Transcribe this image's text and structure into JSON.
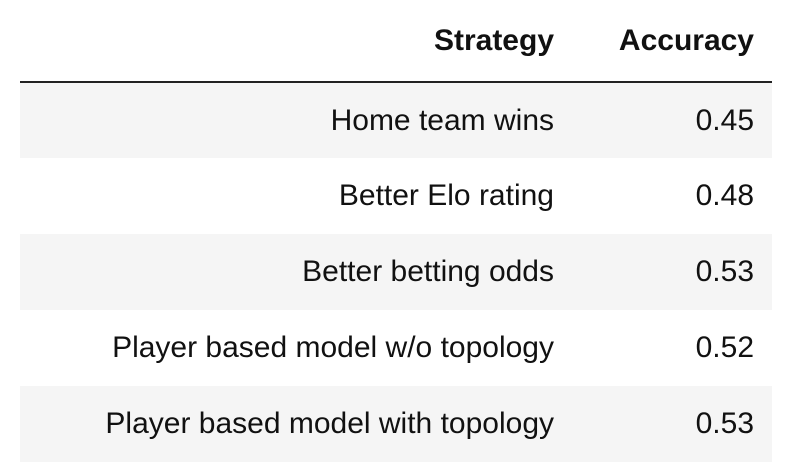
{
  "chart_data": {
    "type": "table",
    "columns": [
      "Strategy",
      "Accuracy"
    ],
    "rows": [
      {
        "strategy": "Home team wins",
        "accuracy": "0.45"
      },
      {
        "strategy": "Better Elo rating",
        "accuracy": "0.48"
      },
      {
        "strategy": "Better betting odds",
        "accuracy": "0.53"
      },
      {
        "strategy": "Player based model w/o topology",
        "accuracy": "0.52"
      },
      {
        "strategy": "Player based model with topology",
        "accuracy": "0.53"
      }
    ]
  },
  "colors": {
    "stripe": "#f5f5f5",
    "rule": "#222222",
    "text": "#111111"
  }
}
